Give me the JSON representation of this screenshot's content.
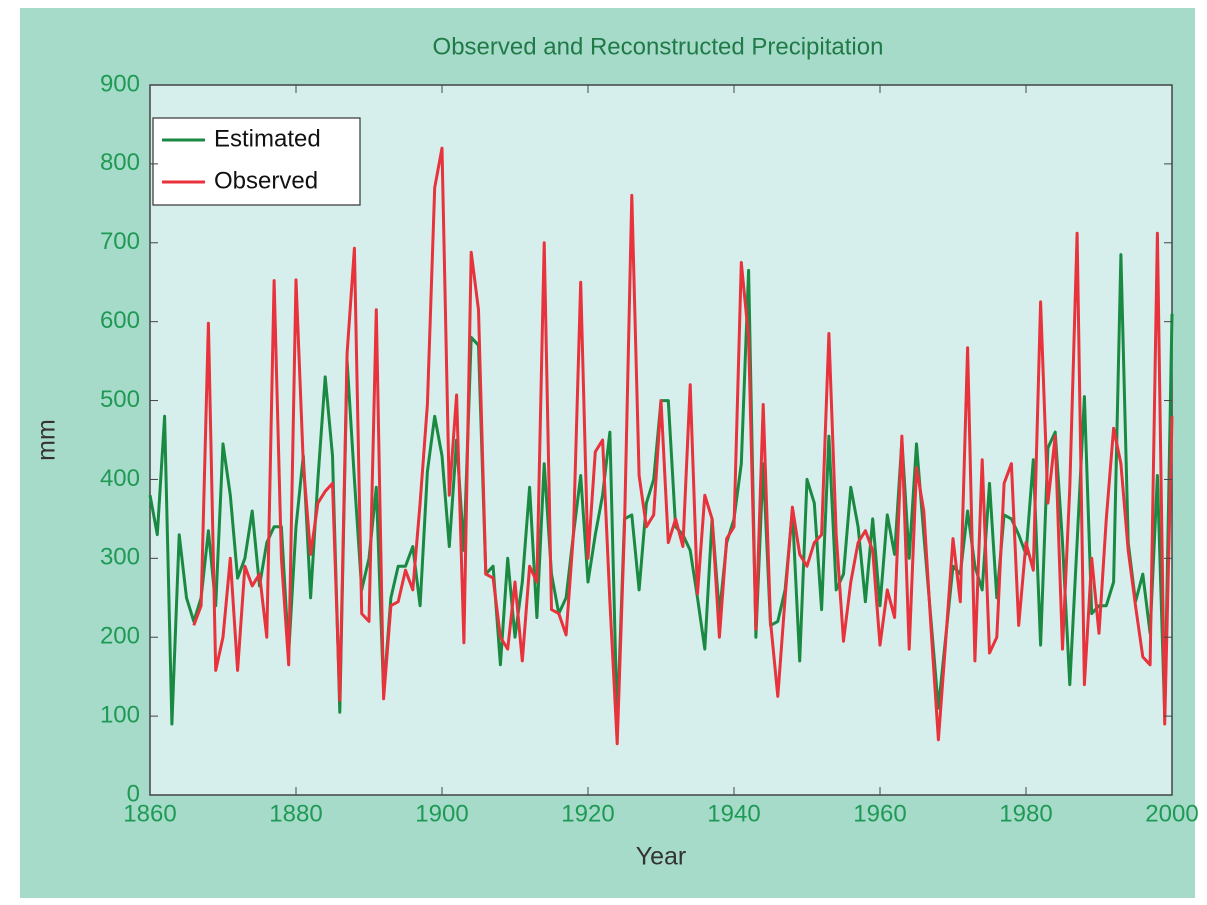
{
  "chart_data": {
    "type": "line",
    "title": "Observed and Reconstructed  Precipitation",
    "xlabel": "Year",
    "ylabel": "mm",
    "x": [
      1860,
      1861,
      1862,
      1863,
      1864,
      1865,
      1866,
      1867,
      1868,
      1869,
      1870,
      1871,
      1872,
      1873,
      1874,
      1875,
      1876,
      1877,
      1878,
      1879,
      1880,
      1881,
      1882,
      1883,
      1884,
      1885,
      1886,
      1887,
      1888,
      1889,
      1890,
      1891,
      1892,
      1893,
      1894,
      1895,
      1896,
      1897,
      1898,
      1899,
      1900,
      1901,
      1902,
      1903,
      1904,
      1905,
      1906,
      1907,
      1908,
      1909,
      1910,
      1911,
      1912,
      1913,
      1914,
      1915,
      1916,
      1917,
      1918,
      1919,
      1920,
      1921,
      1922,
      1923,
      1924,
      1925,
      1926,
      1927,
      1928,
      1929,
      1930,
      1931,
      1932,
      1933,
      1934,
      1935,
      1936,
      1937,
      1938,
      1939,
      1940,
      1941,
      1942,
      1943,
      1944,
      1945,
      1946,
      1947,
      1948,
      1949,
      1950,
      1951,
      1952,
      1953,
      1954,
      1955,
      1956,
      1957,
      1958,
      1959,
      1960,
      1961,
      1962,
      1963,
      1964,
      1965,
      1966,
      1967,
      1968,
      1969,
      1970,
      1971,
      1972,
      1973,
      1974,
      1975,
      1976,
      1977,
      1978,
      1979,
      1980,
      1981,
      1982,
      1983,
      1984,
      1985,
      1986,
      1987,
      1988,
      1989,
      1990,
      1991,
      1992,
      1993,
      1994,
      1995,
      1996,
      1997,
      1998,
      1999,
      2000
    ],
    "series": [
      {
        "name": "Estimated",
        "color": "#1a8a43",
        "values": [
          380,
          330,
          480,
          90,
          330,
          250,
          220,
          250,
          335,
          240,
          445,
          380,
          275,
          300,
          360,
          265,
          320,
          340,
          340,
          180,
          340,
          430,
          250,
          400,
          530,
          430,
          105,
          550,
          400,
          260,
          300,
          390,
          130,
          250,
          290,
          290,
          315,
          240,
          410,
          480,
          430,
          315,
          450,
          310,
          580,
          570,
          280,
          290,
          165,
          300,
          200,
          270,
          390,
          225,
          420,
          280,
          230,
          250,
          330,
          405,
          270,
          330,
          380,
          460,
          90,
          350,
          355,
          260,
          370,
          400,
          500,
          500,
          340,
          330,
          310,
          250,
          185,
          350,
          230,
          320,
          350,
          420,
          665,
          200,
          420,
          215,
          220,
          260,
          360,
          170,
          400,
          370,
          235,
          455,
          260,
          280,
          390,
          340,
          245,
          350,
          240,
          355,
          305,
          450,
          300,
          445,
          330,
          220,
          110,
          200,
          290,
          280,
          360,
          290,
          260,
          395,
          250,
          355,
          350,
          330,
          305,
          425,
          190,
          440,
          460,
          320,
          140,
          320,
          505,
          230,
          240,
          240,
          270,
          685,
          320,
          245,
          280,
          205,
          405,
          100,
          610
        ]
      },
      {
        "name": "Observed",
        "color": "#e8323c",
        "values": [
          null,
          null,
          null,
          null,
          null,
          null,
          215,
          240,
          598,
          158,
          200,
          300,
          158,
          290,
          265,
          280,
          200,
          652,
          300,
          165,
          653,
          420,
          305,
          370,
          385,
          395,
          120,
          560,
          693,
          230,
          220,
          615,
          122,
          240,
          245,
          285,
          260,
          370,
          495,
          770,
          820,
          380,
          507,
          193,
          688,
          615,
          280,
          275,
          200,
          185,
          270,
          170,
          290,
          270,
          700,
          235,
          230,
          203,
          330,
          650,
          300,
          435,
          450,
          245,
          65,
          340,
          760,
          405,
          340,
          355,
          500,
          320,
          350,
          315,
          520,
          255,
          380,
          350,
          200,
          325,
          340,
          675,
          580,
          210,
          495,
          220,
          125,
          250,
          365,
          305,
          290,
          320,
          330,
          585,
          330,
          195,
          270,
          320,
          335,
          310,
          190,
          260,
          225,
          455,
          185,
          415,
          360,
          210,
          70,
          195,
          325,
          245,
          567,
          170,
          425,
          180,
          200,
          395,
          420,
          215,
          320,
          285,
          625,
          370,
          455,
          185,
          390,
          712,
          140,
          300,
          205,
          350,
          465,
          420,
          310,
          240,
          175,
          165,
          712,
          90,
          480
        ]
      }
    ],
    "xlim": [
      1860,
      2000
    ],
    "xticks": [
      1860,
      1880,
      1900,
      1920,
      1940,
      1960,
      1980,
      2000
    ],
    "ylim": [
      0,
      900
    ],
    "yticks": [
      0,
      100,
      200,
      300,
      400,
      500,
      600,
      700,
      800,
      900
    ],
    "grid": false,
    "legend": "upper left"
  }
}
